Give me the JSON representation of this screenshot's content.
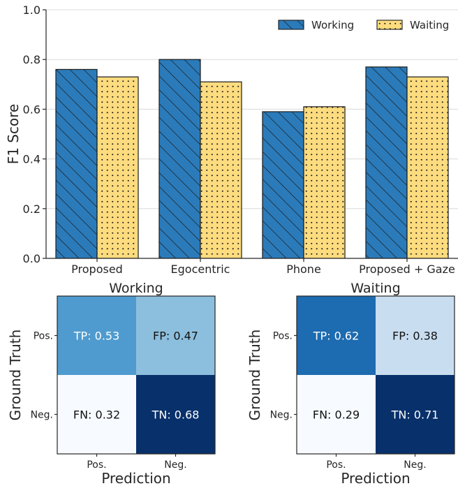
{
  "chart_data": [
    {
      "type": "bar",
      "categories": [
        "Proposed",
        "Egocentric",
        "Phone",
        "Proposed + Gaze"
      ],
      "series": [
        {
          "name": "Working",
          "values": [
            0.76,
            0.8,
            0.59,
            0.77
          ],
          "color": "#2b7bba",
          "pattern": "hatch"
        },
        {
          "name": "Waiting",
          "values": [
            0.73,
            0.71,
            0.61,
            0.73
          ],
          "color": "#fddc7f",
          "pattern": "dots"
        }
      ],
      "ylabel": "F1 Score",
      "ylim": [
        0,
        1.0
      ],
      "yticks": [
        "0.0",
        "0.2",
        "0.4",
        "0.6",
        "0.8",
        "1.0"
      ],
      "legend": "top-right",
      "grid": true
    },
    {
      "type": "heatmap",
      "title": "Working",
      "xlabel": "Prediction",
      "ylabel": "Ground Truth",
      "xticks": [
        "Pos.",
        "Neg."
      ],
      "yticks": [
        "Pos.",
        "Neg."
      ],
      "cells": [
        [
          {
            "label": "TP: 0.53",
            "value": 0.53
          },
          {
            "label": "FP: 0.47",
            "value": 0.47
          }
        ],
        [
          {
            "label": "FN: 0.32",
            "value": 0.32
          },
          {
            "label": "TN: 0.68",
            "value": 0.68
          }
        ]
      ],
      "colors": [
        [
          "#4f9bcf",
          "#8cbfdd"
        ],
        [
          "#f7fbff",
          "#08306b"
        ]
      ]
    },
    {
      "type": "heatmap",
      "title": "Waiting",
      "xlabel": "Prediction",
      "ylabel": "Ground Truth",
      "xticks": [
        "Pos.",
        "Neg."
      ],
      "yticks": [
        "Pos.",
        "Neg."
      ],
      "cells": [
        [
          {
            "label": "TP: 0.62",
            "value": 0.62
          },
          {
            "label": "FP: 0.38",
            "value": 0.38
          }
        ],
        [
          {
            "label": "FN: 0.29",
            "value": 0.29
          },
          {
            "label": "TN: 0.71",
            "value": 0.71
          }
        ]
      ],
      "colors": [
        [
          "#1d6bb0",
          "#c9ddf0"
        ],
        [
          "#f7fbff",
          "#08306b"
        ]
      ]
    }
  ]
}
